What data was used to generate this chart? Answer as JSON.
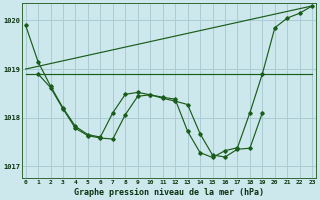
{
  "background_color": "#cce8ec",
  "grid_color": "#aaccd4",
  "line_color": "#1a5c1a",
  "title": "Graphe pression niveau de la mer (hPa)",
  "ylim": [
    1016.75,
    1020.35
  ],
  "yticks": [
    1017,
    1018,
    1019,
    1020
  ],
  "xticks": [
    0,
    1,
    2,
    3,
    4,
    5,
    6,
    7,
    8,
    9,
    10,
    11,
    12,
    13,
    14,
    15,
    16,
    17,
    18,
    19,
    20,
    21,
    22,
    23
  ],
  "flat_line": {
    "x": [
      0,
      23
    ],
    "y": [
      1018.9,
      1018.9
    ]
  },
  "diag_line": {
    "x": [
      0,
      23
    ],
    "y": [
      1019.0,
      1020.3
    ]
  },
  "curve1": {
    "x": [
      0,
      1,
      2,
      3,
      4,
      5,
      6,
      7,
      8,
      9,
      10,
      11,
      12,
      13,
      14,
      15,
      16,
      17,
      18,
      19,
      20,
      21,
      22,
      23
    ],
    "y": [
      1019.9,
      1019.15,
      1018.65,
      1018.2,
      1017.82,
      1017.65,
      1017.6,
      1018.1,
      1018.48,
      1018.52,
      1018.47,
      1018.42,
      1018.38,
      1017.72,
      1017.28,
      1017.18,
      1017.32,
      1017.38,
      1018.1,
      1018.9,
      1019.85,
      1020.05,
      1020.15,
      1020.3
    ]
  },
  "curve2": {
    "x": [
      1,
      2,
      3,
      4,
      5,
      6,
      7,
      8,
      9,
      10,
      11,
      12,
      13,
      14,
      15,
      16,
      17,
      18,
      19
    ],
    "y": [
      1018.9,
      1018.62,
      1018.18,
      1017.78,
      1017.63,
      1017.58,
      1017.56,
      1018.06,
      1018.44,
      1018.47,
      1018.4,
      1018.34,
      1018.27,
      1017.67,
      1017.23,
      1017.19,
      1017.35,
      1017.37,
      1018.1
    ]
  }
}
